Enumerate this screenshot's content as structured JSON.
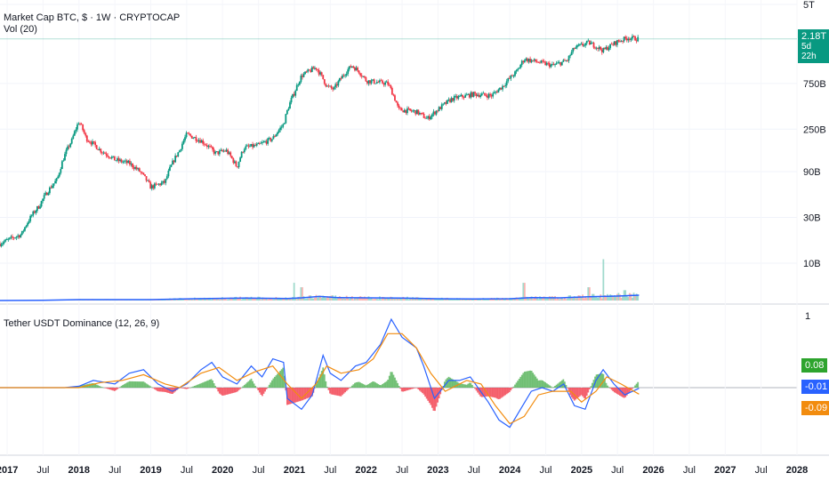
{
  "header": {
    "title": "Market Cap BTC, $ · 1W · CRYPTOCAP",
    "vol_label": "Vol (20)",
    "indicator_label": "Tether USDT Dominance (12, 26, 9)"
  },
  "price_badge": {
    "value": "2.18T",
    "countdown": "5d 22h",
    "color": "#089981"
  },
  "indicator_badges": [
    {
      "value": "0.08",
      "color": "#2da42d"
    },
    {
      "value": "-0.01",
      "color": "#2962ff"
    },
    {
      "value": "-0.09",
      "color": "#f28c0f"
    }
  ],
  "chart_data": [
    {
      "type": "candlestick",
      "title": "Market Cap BTC, $ · 1W · CRYPTOCAP",
      "scale": "log",
      "y_ticks": [
        "5T",
        "750B",
        "250B",
        "90B",
        "30B",
        "10B"
      ],
      "x_ticks": [
        "2017",
        "Jul",
        "2018",
        "Jul",
        "2019",
        "Jul",
        "2020",
        "Jul",
        "2021",
        "Jul",
        "2022",
        "Jul",
        "2023",
        "Jul",
        "2024",
        "Jul",
        "2025",
        "Jul",
        "2026",
        "Jul",
        "2027",
        "Jul",
        "2028"
      ],
      "close_path": [
        [
          2016.9,
          16
        ],
        [
          2017.2,
          20
        ],
        [
          2017.45,
          40
        ],
        [
          2017.7,
          75
        ],
        [
          2017.9,
          190
        ],
        [
          2018.0,
          300
        ],
        [
          2018.1,
          200
        ],
        [
          2018.3,
          150
        ],
        [
          2018.5,
          120
        ],
        [
          2018.7,
          110
        ],
        [
          2018.85,
          90
        ],
        [
          2019.0,
          62
        ],
        [
          2019.2,
          70
        ],
        [
          2019.4,
          150
        ],
        [
          2019.5,
          220
        ],
        [
          2019.7,
          190
        ],
        [
          2019.9,
          140
        ],
        [
          2020.05,
          150
        ],
        [
          2020.2,
          100
        ],
        [
          2020.3,
          160
        ],
        [
          2020.5,
          170
        ],
        [
          2020.7,
          200
        ],
        [
          2020.85,
          280
        ],
        [
          2021.0,
          600
        ],
        [
          2021.1,
          900
        ],
        [
          2021.3,
          1100
        ],
        [
          2021.45,
          700
        ],
        [
          2021.55,
          650
        ],
        [
          2021.8,
          1150
        ],
        [
          2021.9,
          1000
        ],
        [
          2022.0,
          800
        ],
        [
          2022.3,
          750
        ],
        [
          2022.45,
          400
        ],
        [
          2022.7,
          380
        ],
        [
          2022.85,
          320
        ],
        [
          2023.0,
          400
        ],
        [
          2023.2,
          520
        ],
        [
          2023.5,
          580
        ],
        [
          2023.75,
          560
        ],
        [
          2023.9,
          700
        ],
        [
          2024.1,
          1000
        ],
        [
          2024.2,
          1350
        ],
        [
          2024.4,
          1250
        ],
        [
          2024.6,
          1150
        ],
        [
          2024.8,
          1300
        ],
        [
          2024.9,
          1750
        ],
        [
          2025.1,
          2000
        ],
        [
          2025.3,
          1650
        ],
        [
          2025.5,
          2050
        ],
        [
          2025.65,
          2250
        ],
        [
          2025.8,
          2180
        ]
      ],
      "last_value": "2.18T"
    },
    {
      "type": "bar",
      "title": "Vol (20)",
      "scale_max": 250,
      "spikes": [
        [
          2021.0,
          60
        ],
        [
          2021.1,
          45
        ],
        [
          2024.2,
          60
        ],
        [
          2025.1,
          45
        ],
        [
          2025.3,
          140
        ],
        [
          2025.6,
          35
        ]
      ],
      "ma_path": [
        [
          2016.9,
          0
        ],
        [
          2017.5,
          1
        ],
        [
          2018.0,
          3
        ],
        [
          2019.0,
          3
        ],
        [
          2019.6,
          6
        ],
        [
          2020.3,
          8
        ],
        [
          2020.9,
          7
        ],
        [
          2021.1,
          9
        ],
        [
          2021.35,
          14
        ],
        [
          2021.6,
          10
        ],
        [
          2022.0,
          9
        ],
        [
          2022.5,
          8
        ],
        [
          2023.0,
          6
        ],
        [
          2023.5,
          5
        ],
        [
          2024.0,
          6
        ],
        [
          2024.3,
          10
        ],
        [
          2024.7,
          9
        ],
        [
          2025.1,
          13
        ],
        [
          2025.5,
          15
        ],
        [
          2025.8,
          18
        ]
      ]
    },
    {
      "type": "line",
      "title": "Tether USDT Dominance (12, 26, 9)",
      "y_ticks": [
        "1"
      ],
      "ylim": [
        -0.6,
        1.0
      ],
      "series": [
        {
          "name": "MACD",
          "color": "#2962ff",
          "values": [
            [
              2016.9,
              0.0
            ],
            [
              2017.8,
              0.0
            ],
            [
              2018.0,
              0.02
            ],
            [
              2018.2,
              0.1
            ],
            [
              2018.5,
              0.05
            ],
            [
              2018.7,
              0.2
            ],
            [
              2018.9,
              0.25
            ],
            [
              2019.1,
              0.05
            ],
            [
              2019.3,
              -0.05
            ],
            [
              2019.5,
              0.05
            ],
            [
              2019.7,
              0.25
            ],
            [
              2019.85,
              0.35
            ],
            [
              2020.0,
              0.15
            ],
            [
              2020.2,
              0.05
            ],
            [
              2020.4,
              0.3
            ],
            [
              2020.55,
              0.15
            ],
            [
              2020.7,
              0.4
            ],
            [
              2020.85,
              0.35
            ],
            [
              2020.9,
              -0.15
            ],
            [
              2021.1,
              -0.3
            ],
            [
              2021.25,
              -0.1
            ],
            [
              2021.4,
              0.45
            ],
            [
              2021.5,
              0.2
            ],
            [
              2021.65,
              0.1
            ],
            [
              2021.85,
              0.3
            ],
            [
              2022.0,
              0.35
            ],
            [
              2022.2,
              0.6
            ],
            [
              2022.35,
              0.95
            ],
            [
              2022.5,
              0.7
            ],
            [
              2022.7,
              0.55
            ],
            [
              2022.8,
              0.3
            ],
            [
              2022.95,
              -0.15
            ],
            [
              2023.15,
              0.1
            ],
            [
              2023.3,
              0.1
            ],
            [
              2023.45,
              0.15
            ],
            [
              2023.7,
              -0.2
            ],
            [
              2023.85,
              -0.45
            ],
            [
              2024.0,
              -0.55
            ],
            [
              2024.15,
              -0.3
            ],
            [
              2024.3,
              -0.05
            ],
            [
              2024.45,
              0.0
            ],
            [
              2024.6,
              -0.05
            ],
            [
              2024.75,
              0.05
            ],
            [
              2024.9,
              -0.25
            ],
            [
              2025.05,
              -0.3
            ],
            [
              2025.2,
              0.1
            ],
            [
              2025.3,
              0.25
            ],
            [
              2025.45,
              0.05
            ],
            [
              2025.6,
              -0.1
            ],
            [
              2025.8,
              -0.01
            ]
          ]
        },
        {
          "name": "Signal",
          "color": "#f28c0f",
          "values": [
            [
              2016.9,
              0.0
            ],
            [
              2017.8,
              0.0
            ],
            [
              2018.0,
              0.0
            ],
            [
              2018.3,
              0.07
            ],
            [
              2018.6,
              0.1
            ],
            [
              2018.9,
              0.18
            ],
            [
              2019.2,
              0.05
            ],
            [
              2019.4,
              0.0
            ],
            [
              2019.7,
              0.2
            ],
            [
              2019.95,
              0.28
            ],
            [
              2020.2,
              0.1
            ],
            [
              2020.45,
              0.22
            ],
            [
              2020.7,
              0.3
            ],
            [
              2020.9,
              0.05
            ],
            [
              2021.1,
              -0.15
            ],
            [
              2021.3,
              0.05
            ],
            [
              2021.45,
              0.3
            ],
            [
              2021.65,
              0.2
            ],
            [
              2021.9,
              0.25
            ],
            [
              2022.1,
              0.4
            ],
            [
              2022.3,
              0.75
            ],
            [
              2022.5,
              0.75
            ],
            [
              2022.7,
              0.55
            ],
            [
              2022.9,
              0.2
            ],
            [
              2023.1,
              -0.05
            ],
            [
              2023.4,
              0.1
            ],
            [
              2023.6,
              0.05
            ],
            [
              2023.8,
              -0.25
            ],
            [
              2024.0,
              -0.5
            ],
            [
              2024.2,
              -0.4
            ],
            [
              2024.4,
              -0.1
            ],
            [
              2024.6,
              -0.05
            ],
            [
              2024.85,
              -0.05
            ],
            [
              2025.0,
              -0.2
            ],
            [
              2025.2,
              -0.05
            ],
            [
              2025.35,
              0.15
            ],
            [
              2025.55,
              0.05
            ],
            [
              2025.8,
              -0.09
            ]
          ]
        }
      ],
      "last_values": {
        "histogram": "0.08",
        "macd": "-0.01",
        "signal": "-0.09"
      }
    }
  ]
}
